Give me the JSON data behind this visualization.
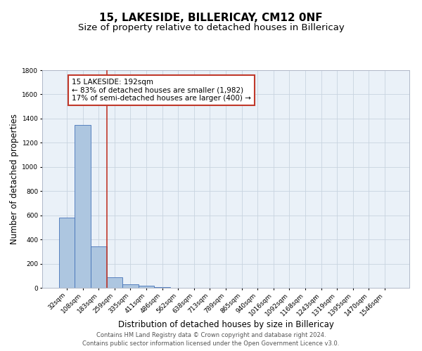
{
  "title": "15, LAKESIDE, BILLERICAY, CM12 0NF",
  "subtitle": "Size of property relative to detached houses in Billericay",
  "xlabel": "Distribution of detached houses by size in Billericay",
  "ylabel": "Number of detached properties",
  "footnote1": "Contains HM Land Registry data © Crown copyright and database right 2024.",
  "footnote2": "Contains public sector information licensed under the Open Government Licence v3.0.",
  "bar_labels": [
    "32sqm",
    "108sqm",
    "183sqm",
    "259sqm",
    "335sqm",
    "411sqm",
    "486sqm",
    "562sqm",
    "638sqm",
    "713sqm",
    "789sqm",
    "865sqm",
    "940sqm",
    "1016sqm",
    "1092sqm",
    "1168sqm",
    "1243sqm",
    "1319sqm",
    "1395sqm",
    "1470sqm",
    "1546sqm"
  ],
  "bar_values": [
    580,
    1350,
    345,
    90,
    28,
    15,
    5,
    0,
    0,
    0,
    0,
    0,
    0,
    0,
    0,
    0,
    0,
    0,
    0,
    0,
    0
  ],
  "bar_color": "#adc6e0",
  "bar_edge_color": "#4472b8",
  "vline_x": 2.5,
  "vline_color": "#c0392b",
  "ylim": [
    0,
    1800
  ],
  "yticks": [
    0,
    200,
    400,
    600,
    800,
    1000,
    1200,
    1400,
    1600,
    1800
  ],
  "annotation_box_text": "15 LAKESIDE: 192sqm\n← 83% of detached houses are smaller (1,982)\n17% of semi-detached houses are larger (400) →",
  "bg_color": "#eaf1f8",
  "grid_color": "#c8d4e0",
  "title_fontsize": 11,
  "subtitle_fontsize": 9.5,
  "axis_label_fontsize": 8.5,
  "tick_fontsize": 6.5,
  "annotation_fontsize": 7.5,
  "footnote_fontsize": 6.0
}
